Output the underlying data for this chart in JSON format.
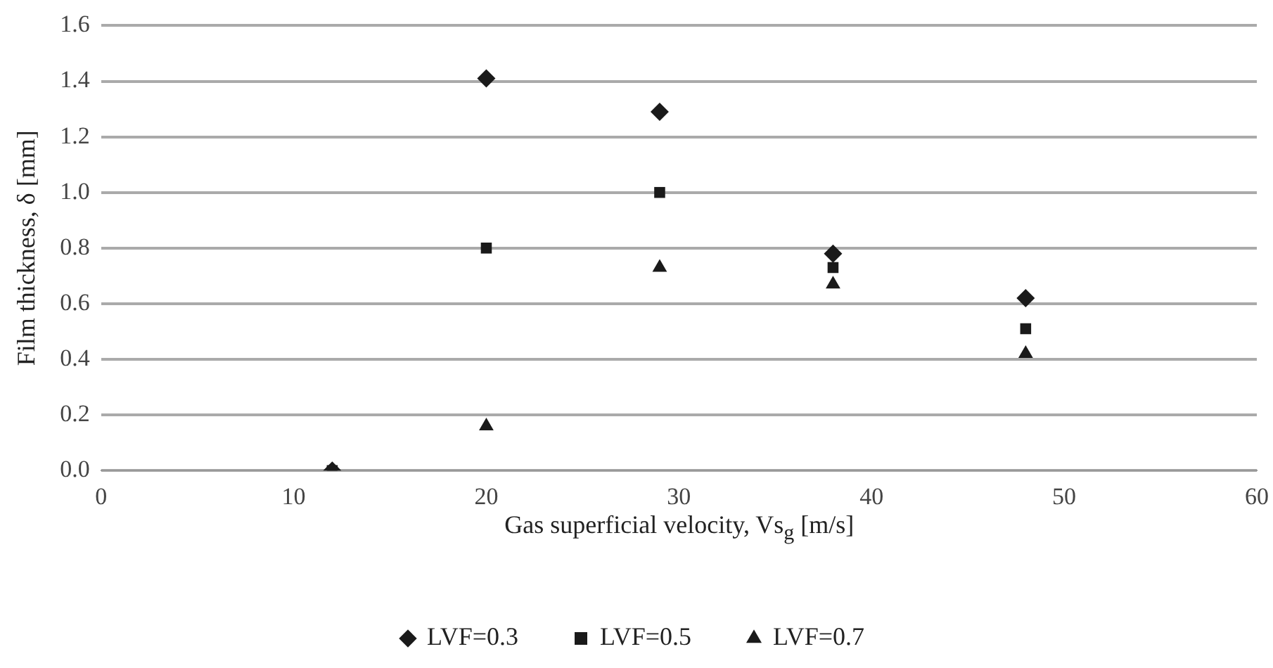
{
  "chart_data": {
    "type": "scatter",
    "xlabel": "Gas superficial velocity, Vs$_{g}$ [m/s]",
    "ylabel": "Film thickness, δ [mm]",
    "series": [
      {
        "name": "LVF=0.3",
        "color": "#1a1a1a",
        "marker": "diamond",
        "x": [
          12,
          20,
          29,
          38,
          48
        ],
        "values": [
          0,
          1.41,
          1.29,
          0.78,
          0.62
        ]
      },
      {
        "name": "LVF=0.5",
        "color": "#1a1a1a",
        "marker": "square",
        "x": [
          12,
          20,
          29,
          38,
          48
        ],
        "values": [
          0,
          0.8,
          1.0,
          0.73,
          0.51
        ]
      },
      {
        "name": "LVF=0.7",
        "color": "#1a1a1a",
        "marker": "triangle",
        "x": [
          12,
          20,
          29,
          38,
          48
        ],
        "values": [
          0,
          0.16,
          0.73,
          0.67,
          0.42
        ]
      }
    ],
    "xlim": [
      0,
      60
    ],
    "xticks": [
      0,
      10,
      20,
      30,
      40,
      50,
      60
    ],
    "ylim": [
      0,
      1.6
    ],
    "yticks": [
      {
        "value": 0,
        "label": "0.0"
      },
      {
        "value": 0.2,
        "label": "0.2"
      },
      {
        "value": 0.4,
        "label": "0.4"
      },
      {
        "value": 0.6,
        "label": "0.6"
      },
      {
        "value": 0.8,
        "label": "0.8"
      },
      {
        "value": 1.0,
        "label": "1.0"
      },
      {
        "value": 1.2,
        "label": "1.2"
      },
      {
        "value": 1.4,
        "label": "1.4"
      },
      {
        "value": 1.6,
        "label": "1.6"
      }
    ],
    "grid": "y",
    "legend": "bottom"
  }
}
